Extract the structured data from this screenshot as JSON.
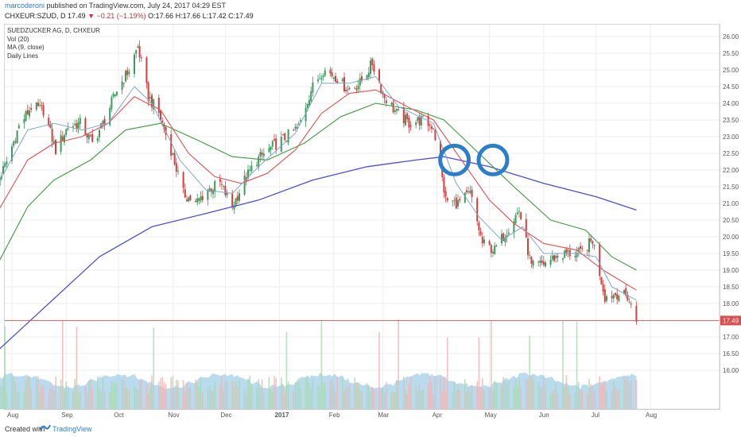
{
  "header": {
    "author": "marcoderoni",
    "published": "published on TradingView.com, July 24, 2017 04:29 EST",
    "symbol": "CHXEUR:SZUD, D",
    "last": "17.49",
    "change": "−0.21 (−1.19%)",
    "ohlc": "O:17.66 H:17.66 L:17.42 C:17.49"
  },
  "legend": {
    "title": "SUEDZUCKER AG, D, CHXEUR",
    "vol": "Vol (20)",
    "ma": "MA (9, close)",
    "daily": "Daily Lines"
  },
  "footer": {
    "created": "Created with",
    "brand": "TradingView"
  },
  "colors": {
    "up": "#3c9a5f",
    "down": "#d33f3f",
    "ma_fast": "#7ea7c9",
    "ma_mid": "#e25050",
    "ma_slow": "#3c9a3c",
    "ma_long": "#4a4fd1",
    "circle": "#2a7fc8",
    "vol_up": "#a8d8b0",
    "vol_down": "#f0b4b4",
    "vol_ma": "#9ccbe6",
    "price_line": "#d95050"
  },
  "chart_data": {
    "type": "candlestick",
    "title": "SUEDZUCKER AG, D, CHXEUR",
    "last_price": 17.49,
    "x_ticks": [
      "Aug",
      "Sep",
      "Oct",
      "Nov",
      "Dec",
      "2017",
      "Feb",
      "Mar",
      "Apr",
      "May",
      "Jun",
      "Jul",
      "Aug"
    ],
    "y_ticks": [
      "26.00",
      "25.50",
      "25.00",
      "24.50",
      "24.00",
      "23.50",
      "23.00",
      "22.50",
      "22.00",
      "21.50",
      "21.00",
      "20.50",
      "20.00",
      "19.50",
      "19.00",
      "18.50",
      "18.00",
      "17.49",
      "17.00",
      "16.50",
      "16.00"
    ],
    "y_range": [
      15.9,
      26.3
    ],
    "close_path": [
      [
        "2016-07-20",
        21.3
      ],
      [
        "2016-07-28",
        22.1
      ],
      [
        "2016-08-05",
        23.3
      ],
      [
        "2016-08-12",
        23.9
      ],
      [
        "2016-08-19",
        23.8
      ],
      [
        "2016-08-26",
        22.6
      ],
      [
        "2016-09-02",
        23.3
      ],
      [
        "2016-09-09",
        23.4
      ],
      [
        "2016-09-16",
        22.8
      ],
      [
        "2016-09-23",
        23.5
      ],
      [
        "2016-09-30",
        24.4
      ],
      [
        "2016-10-07",
        25.0
      ],
      [
        "2016-10-12",
        25.7
      ],
      [
        "2016-10-18",
        24.2
      ],
      [
        "2016-10-24",
        23.7
      ],
      [
        "2016-10-31",
        22.6
      ],
      [
        "2016-11-07",
        21.3
      ],
      [
        "2016-11-14",
        21.0
      ],
      [
        "2016-11-21",
        21.4
      ],
      [
        "2016-11-28",
        21.6
      ],
      [
        "2016-12-05",
        20.9
      ],
      [
        "2016-12-12",
        21.7
      ],
      [
        "2016-12-19",
        22.3
      ],
      [
        "2016-12-28",
        22.7
      ],
      [
        "2017-01-05",
        23.0
      ],
      [
        "2017-01-12",
        23.3
      ],
      [
        "2017-01-19",
        24.4
      ],
      [
        "2017-01-26",
        25.0
      ],
      [
        "2017-02-02",
        24.8
      ],
      [
        "2017-02-09",
        24.4
      ],
      [
        "2017-02-16",
        24.6
      ],
      [
        "2017-02-23",
        25.2
      ],
      [
        "2017-03-02",
        24.2
      ],
      [
        "2017-03-09",
        23.7
      ],
      [
        "2017-03-16",
        23.4
      ],
      [
        "2017-03-23",
        23.5
      ],
      [
        "2017-03-30",
        23.3
      ],
      [
        "2017-04-06",
        21.1
      ],
      [
        "2017-04-13",
        21.0
      ],
      [
        "2017-04-20",
        21.3
      ],
      [
        "2017-04-27",
        19.8
      ],
      [
        "2017-05-04",
        19.6
      ],
      [
        "2017-05-11",
        20.2
      ],
      [
        "2017-05-18",
        20.8
      ],
      [
        "2017-05-25",
        19.1
      ],
      [
        "2017-06-01",
        19.2
      ],
      [
        "2017-06-08",
        19.4
      ],
      [
        "2017-06-15",
        19.5
      ],
      [
        "2017-06-22",
        19.5
      ],
      [
        "2017-06-29",
        19.9
      ],
      [
        "2017-07-06",
        18.2
      ],
      [
        "2017-07-13",
        18.3
      ],
      [
        "2017-07-19",
        18.2
      ],
      [
        "2017-07-24",
        17.49
      ]
    ],
    "ma_fast": [
      [
        "2016-07-20",
        21.2
      ],
      [
        "2016-08-10",
        23.2
      ],
      [
        "2016-08-25",
        23.4
      ],
      [
        "2016-09-10",
        23.2
      ],
      [
        "2016-09-25",
        23.4
      ],
      [
        "2016-10-10",
        24.5
      ],
      [
        "2016-10-20",
        24.0
      ],
      [
        "2016-11-05",
        22.3
      ],
      [
        "2016-11-20",
        21.4
      ],
      [
        "2016-12-05",
        21.3
      ],
      [
        "2016-12-20",
        22.1
      ],
      [
        "2017-01-10",
        23.1
      ],
      [
        "2017-01-25",
        24.6
      ],
      [
        "2017-02-10",
        24.6
      ],
      [
        "2017-02-25",
        24.8
      ],
      [
        "2017-03-10",
        23.9
      ],
      [
        "2017-03-30",
        23.4
      ],
      [
        "2017-04-12",
        21.6
      ],
      [
        "2017-04-25",
        20.6
      ],
      [
        "2017-05-08",
        19.9
      ],
      [
        "2017-05-20",
        20.3
      ],
      [
        "2017-06-01",
        19.5
      ],
      [
        "2017-06-20",
        19.5
      ],
      [
        "2017-07-01",
        19.4
      ],
      [
        "2017-07-10",
        18.5
      ],
      [
        "2017-07-24",
        18.1
      ]
    ],
    "ma_mid": [
      [
        "2016-07-20",
        20.4
      ],
      [
        "2016-08-10",
        22.3
      ],
      [
        "2016-08-25",
        22.8
      ],
      [
        "2016-09-10",
        23.0
      ],
      [
        "2016-09-25",
        23.4
      ],
      [
        "2016-10-10",
        24.2
      ],
      [
        "2016-10-25",
        23.8
      ],
      [
        "2016-11-10",
        22.5
      ],
      [
        "2016-11-25",
        21.8
      ],
      [
        "2016-12-10",
        21.6
      ],
      [
        "2016-12-25",
        21.9
      ],
      [
        "2017-01-10",
        22.6
      ],
      [
        "2017-01-25",
        23.7
      ],
      [
        "2017-02-10",
        24.3
      ],
      [
        "2017-02-25",
        24.4
      ],
      [
        "2017-03-15",
        23.9
      ],
      [
        "2017-03-30",
        23.5
      ],
      [
        "2017-04-15",
        22.3
      ],
      [
        "2017-05-01",
        21.1
      ],
      [
        "2017-05-15",
        20.4
      ],
      [
        "2017-06-01",
        19.8
      ],
      [
        "2017-06-20",
        19.6
      ],
      [
        "2017-07-05",
        19.0
      ],
      [
        "2017-07-24",
        18.4
      ]
    ],
    "ma_slow": [
      [
        "2016-07-20",
        18.8
      ],
      [
        "2016-08-10",
        20.9
      ],
      [
        "2016-08-25",
        21.7
      ],
      [
        "2016-09-15",
        22.3
      ],
      [
        "2016-10-05",
        23.2
      ],
      [
        "2016-10-25",
        23.4
      ],
      [
        "2016-11-15",
        22.9
      ],
      [
        "2016-12-05",
        22.4
      ],
      [
        "2016-12-25",
        22.3
      ],
      [
        "2017-01-15",
        22.8
      ],
      [
        "2017-02-05",
        23.6
      ],
      [
        "2017-02-25",
        24.0
      ],
      [
        "2017-03-20",
        23.8
      ],
      [
        "2017-04-05",
        23.5
      ],
      [
        "2017-04-25",
        22.5
      ],
      [
        "2017-05-15",
        21.5
      ],
      [
        "2017-06-05",
        20.5
      ],
      [
        "2017-06-25",
        20.2
      ],
      [
        "2017-07-10",
        19.4
      ],
      [
        "2017-07-24",
        19.0
      ]
    ],
    "ma_long": [
      [
        "2016-07-20",
        16.4
      ],
      [
        "2016-08-20",
        17.9
      ],
      [
        "2016-09-20",
        19.4
      ],
      [
        "2016-10-20",
        20.3
      ],
      [
        "2016-11-20",
        20.7
      ],
      [
        "2016-12-20",
        21.1
      ],
      [
        "2017-01-20",
        21.7
      ],
      [
        "2017-02-20",
        22.1
      ],
      [
        "2017-03-20",
        22.3
      ],
      [
        "2017-04-05",
        22.4
      ],
      [
        "2017-05-01",
        22.1
      ],
      [
        "2017-06-01",
        21.6
      ],
      [
        "2017-07-01",
        21.2
      ],
      [
        "2017-07-24",
        20.8
      ]
    ],
    "annotations": [
      {
        "type": "circle",
        "date": "2017-04-11",
        "price": 22.3
      },
      {
        "type": "circle",
        "date": "2017-05-03",
        "price": 22.3
      }
    ]
  }
}
